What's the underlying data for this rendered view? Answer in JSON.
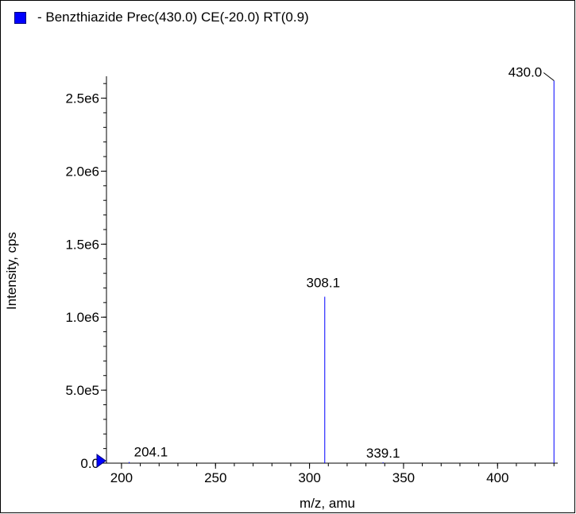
{
  "legend": {
    "label": "- Benzthiazide Prec(430.0) CE(-20.0) RT(0.9)",
    "color": "#0000ff"
  },
  "chart_data": {
    "type": "bar",
    "title": "",
    "xlabel": "m/z, amu",
    "ylabel": "Intensity, cps",
    "xlim": [
      192,
      432
    ],
    "ylim": [
      0,
      2650000
    ],
    "x_ticks": [
      200,
      250,
      300,
      350,
      400
    ],
    "x_tick_labels": [
      "200",
      "250",
      "300",
      "350",
      "400"
    ],
    "y_ticks": [
      0,
      500000,
      1000000,
      1500000,
      2000000,
      2500000
    ],
    "y_tick_labels": [
      "0.0",
      "5.0e5",
      "1.0e6",
      "1.5e6",
      "2.0e6",
      "2.5e6"
    ],
    "series": [
      {
        "name": "- Benzthiazide Prec(430.0) CE(-20.0) RT(0.9)",
        "color": "#0000ff",
        "points": [
          {
            "x": 204.1,
            "y": 8000,
            "label": "204.1"
          },
          {
            "x": 308.1,
            "y": 1140000,
            "label": "308.1"
          },
          {
            "x": 339.1,
            "y": 6000,
            "label": "339.1"
          },
          {
            "x": 430.0,
            "y": 2620000,
            "label": "430.0"
          }
        ]
      }
    ],
    "grid": false
  }
}
